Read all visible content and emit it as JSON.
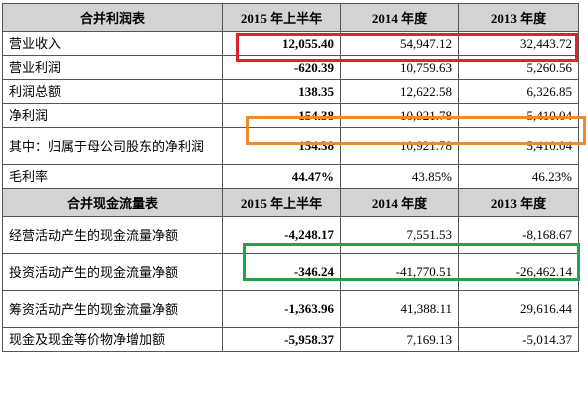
{
  "income": {
    "header": [
      "合并利润表",
      "2015 年上半年",
      "2014 年度",
      "2013 年度"
    ],
    "rows": [
      {
        "label": "营业收入",
        "v2015": "12,055.40",
        "v2014": "54,947.12",
        "v2013": "32,443.72"
      },
      {
        "label": "营业利润",
        "v2015": "-620.39",
        "v2014": "10,759.63",
        "v2013": "5,260.56"
      },
      {
        "label": "利润总额",
        "v2015": "138.35",
        "v2014": "12,622.58",
        "v2013": "6,326.85"
      },
      {
        "label": "净利润",
        "v2015": "154.38",
        "v2014": "10,921.78",
        "v2013": "5,410.04"
      },
      {
        "label": "其中：归属于母公司股东的净利润",
        "v2015": "154.38",
        "v2014": "10,921.78",
        "v2013": "5,410.04"
      },
      {
        "label": "毛利率",
        "v2015": "44.47%",
        "v2014": "43.85%",
        "v2013": "46.23%"
      }
    ]
  },
  "cashflow": {
    "header": [
      "合并现金流量表",
      "2015 年上半年",
      "2014 年度",
      "2013 年度"
    ],
    "rows": [
      {
        "label": "经营活动产生的现金流量净额",
        "v2015": "-4,248.17",
        "v2014": "7,551.53",
        "v2013": "-8,168.67"
      },
      {
        "label": "投资活动产生的现金流量净额",
        "v2015": "-346.24",
        "v2014": "-41,770.51",
        "v2013": "-26,462.14"
      },
      {
        "label": "筹资活动产生的现金流量净额",
        "v2015": "-1,363.96",
        "v2014": "41,388.11",
        "v2013": "29,616.44"
      },
      {
        "label": "现金及现金等价物净增加额",
        "v2015": "-5,958.37",
        "v2014": "7,169.13",
        "v2013": "-5,014.37"
      }
    ]
  },
  "highlights": {
    "red": "#e0222a",
    "orange": "#f08a2c",
    "green": "#1aa64a"
  }
}
